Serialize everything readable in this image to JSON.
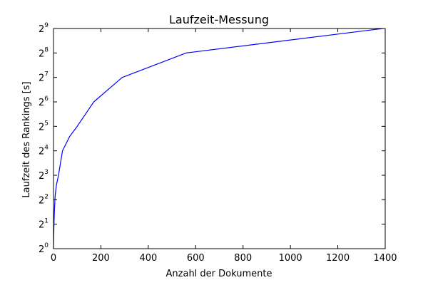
{
  "chart_data": {
    "type": "line",
    "title": "Laufzeit-Messung",
    "xlabel": "Anzahl der Dokumente",
    "ylabel": "Laufzeit des Rankings [s]",
    "xlim": [
      0,
      1400
    ],
    "ylim": [
      1,
      512
    ],
    "yscale": "log2",
    "grid": false,
    "legend": "none",
    "xticks": [
      {
        "value": 0,
        "label": "0"
      },
      {
        "value": 200,
        "label": "200"
      },
      {
        "value": 400,
        "label": "400"
      },
      {
        "value": 600,
        "label": "600"
      },
      {
        "value": 800,
        "label": "800"
      },
      {
        "value": 1000,
        "label": "1000"
      },
      {
        "value": 1200,
        "label": "1200"
      },
      {
        "value": 1400,
        "label": "1400"
      }
    ],
    "yticks": [
      {
        "value": 1,
        "base": "2",
        "exponent": "0"
      },
      {
        "value": 2,
        "base": "2",
        "exponent": "1"
      },
      {
        "value": 4,
        "base": "2",
        "exponent": "2"
      },
      {
        "value": 8,
        "base": "2",
        "exponent": "3"
      },
      {
        "value": 16,
        "base": "2",
        "exponent": "4"
      },
      {
        "value": 32,
        "base": "2",
        "exponent": "5"
      },
      {
        "value": 64,
        "base": "2",
        "exponent": "6"
      },
      {
        "value": 128,
        "base": "2",
        "exponent": "7"
      },
      {
        "value": 256,
        "base": "2",
        "exponent": "8"
      },
      {
        "value": 512,
        "base": "2",
        "exponent": "9"
      }
    ],
    "series": [
      {
        "color": "#0000ff",
        "x": [
          0,
          1,
          2,
          4,
          7,
          12,
          21,
          38,
          68,
          100,
          170,
          290,
          560,
          1390
        ],
        "y": [
          1,
          1.5,
          2,
          3,
          4.5,
          6,
          8,
          16,
          24,
          32,
          64,
          128,
          256,
          512
        ]
      }
    ]
  }
}
